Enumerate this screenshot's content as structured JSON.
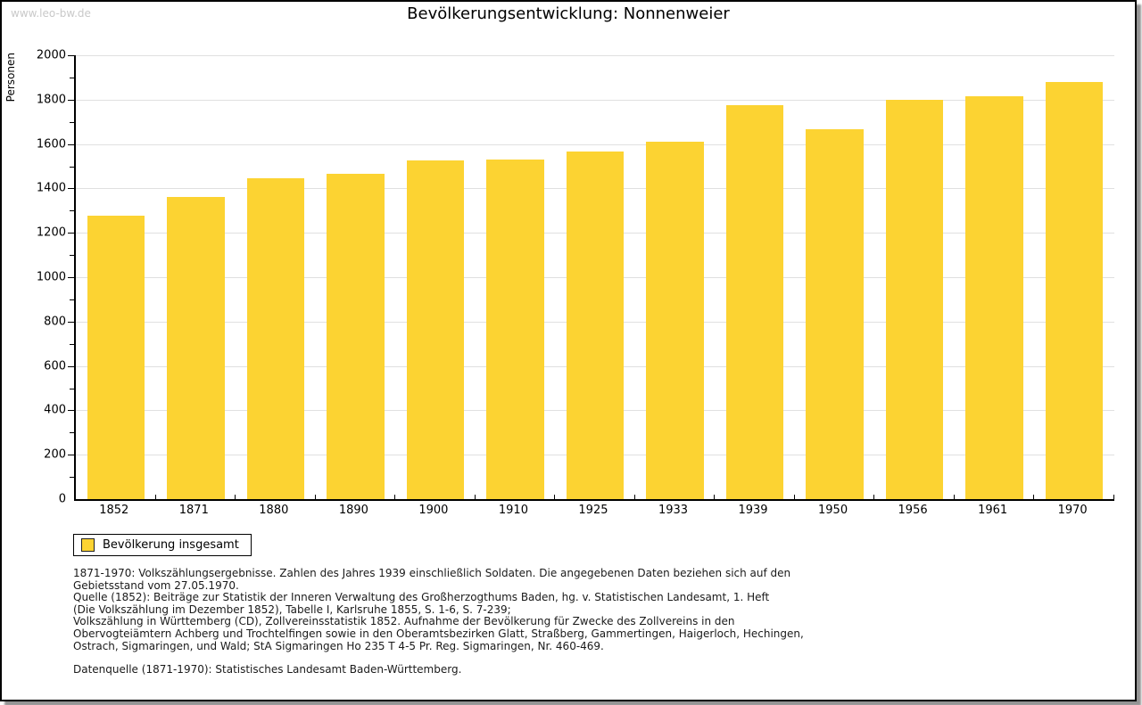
{
  "page": {
    "watermark": "www.leo-bw.de",
    "title": "Bevölkerungsentwicklung: Nonnenweier"
  },
  "chart_data": {
    "type": "bar",
    "title": "Bevölkerungsentwicklung: Nonnenweier",
    "xlabel": "",
    "ylabel": "Personen",
    "categories": [
      "1852",
      "1871",
      "1880",
      "1890",
      "1900",
      "1910",
      "1925",
      "1933",
      "1939",
      "1950",
      "1956",
      "1961",
      "1970"
    ],
    "values": [
      1277,
      1360,
      1445,
      1465,
      1527,
      1532,
      1567,
      1610,
      1775,
      1666,
      1800,
      1814,
      1878
    ],
    "ylim": [
      0,
      2000
    ],
    "ytick_major_step": 200,
    "ytick_minor_step": 100,
    "grid": "horizontal-major-light-gray",
    "legend_position": "bottom-left",
    "legend_entries": [
      "Bevölkerung insgesamt"
    ],
    "bar_color": "#FCD332",
    "gridline_color": "#e0e0e0"
  },
  "legend": {
    "label": "Bevölkerung insgesamt",
    "swatch_color": "#FCD332"
  },
  "footer": {
    "notes_lines": [
      "1871-1970: Volkszählungsergebnisse. Zahlen des Jahres 1939 einschließlich Soldaten. Die angegebenen Daten beziehen sich auf den",
      "Gebietsstand vom 27.05.1970.",
      "Quelle (1852): Beiträge zur Statistik der Inneren Verwaltung des Großherzogthums Baden, hg. v. Statistischen Landesamt, 1. Heft",
      "(Die Volkszählung im Dezember 1852), Tabelle I, Karlsruhe 1855, S. 1-6, S. 7-239;",
      "Volkszählung in Württemberg (CD), Zollvereinsstatistik 1852. Aufnahme der Bevölkerung für Zwecke des Zollvereins in den",
      "Obervogteiämtern Achberg und Trochtelfingen sowie in den Oberamtsbezirken Glatt, Straßberg, Gammertingen, Haigerloch, Hechingen,",
      "Ostrach, Sigmaringen, und Wald; StA Sigmaringen Ho 235 T 4-5 Pr. Reg. Sigmaringen, Nr. 460-469."
    ],
    "datasource": "Datenquelle (1871-1970): Statistisches Landesamt Baden-Württemberg."
  }
}
